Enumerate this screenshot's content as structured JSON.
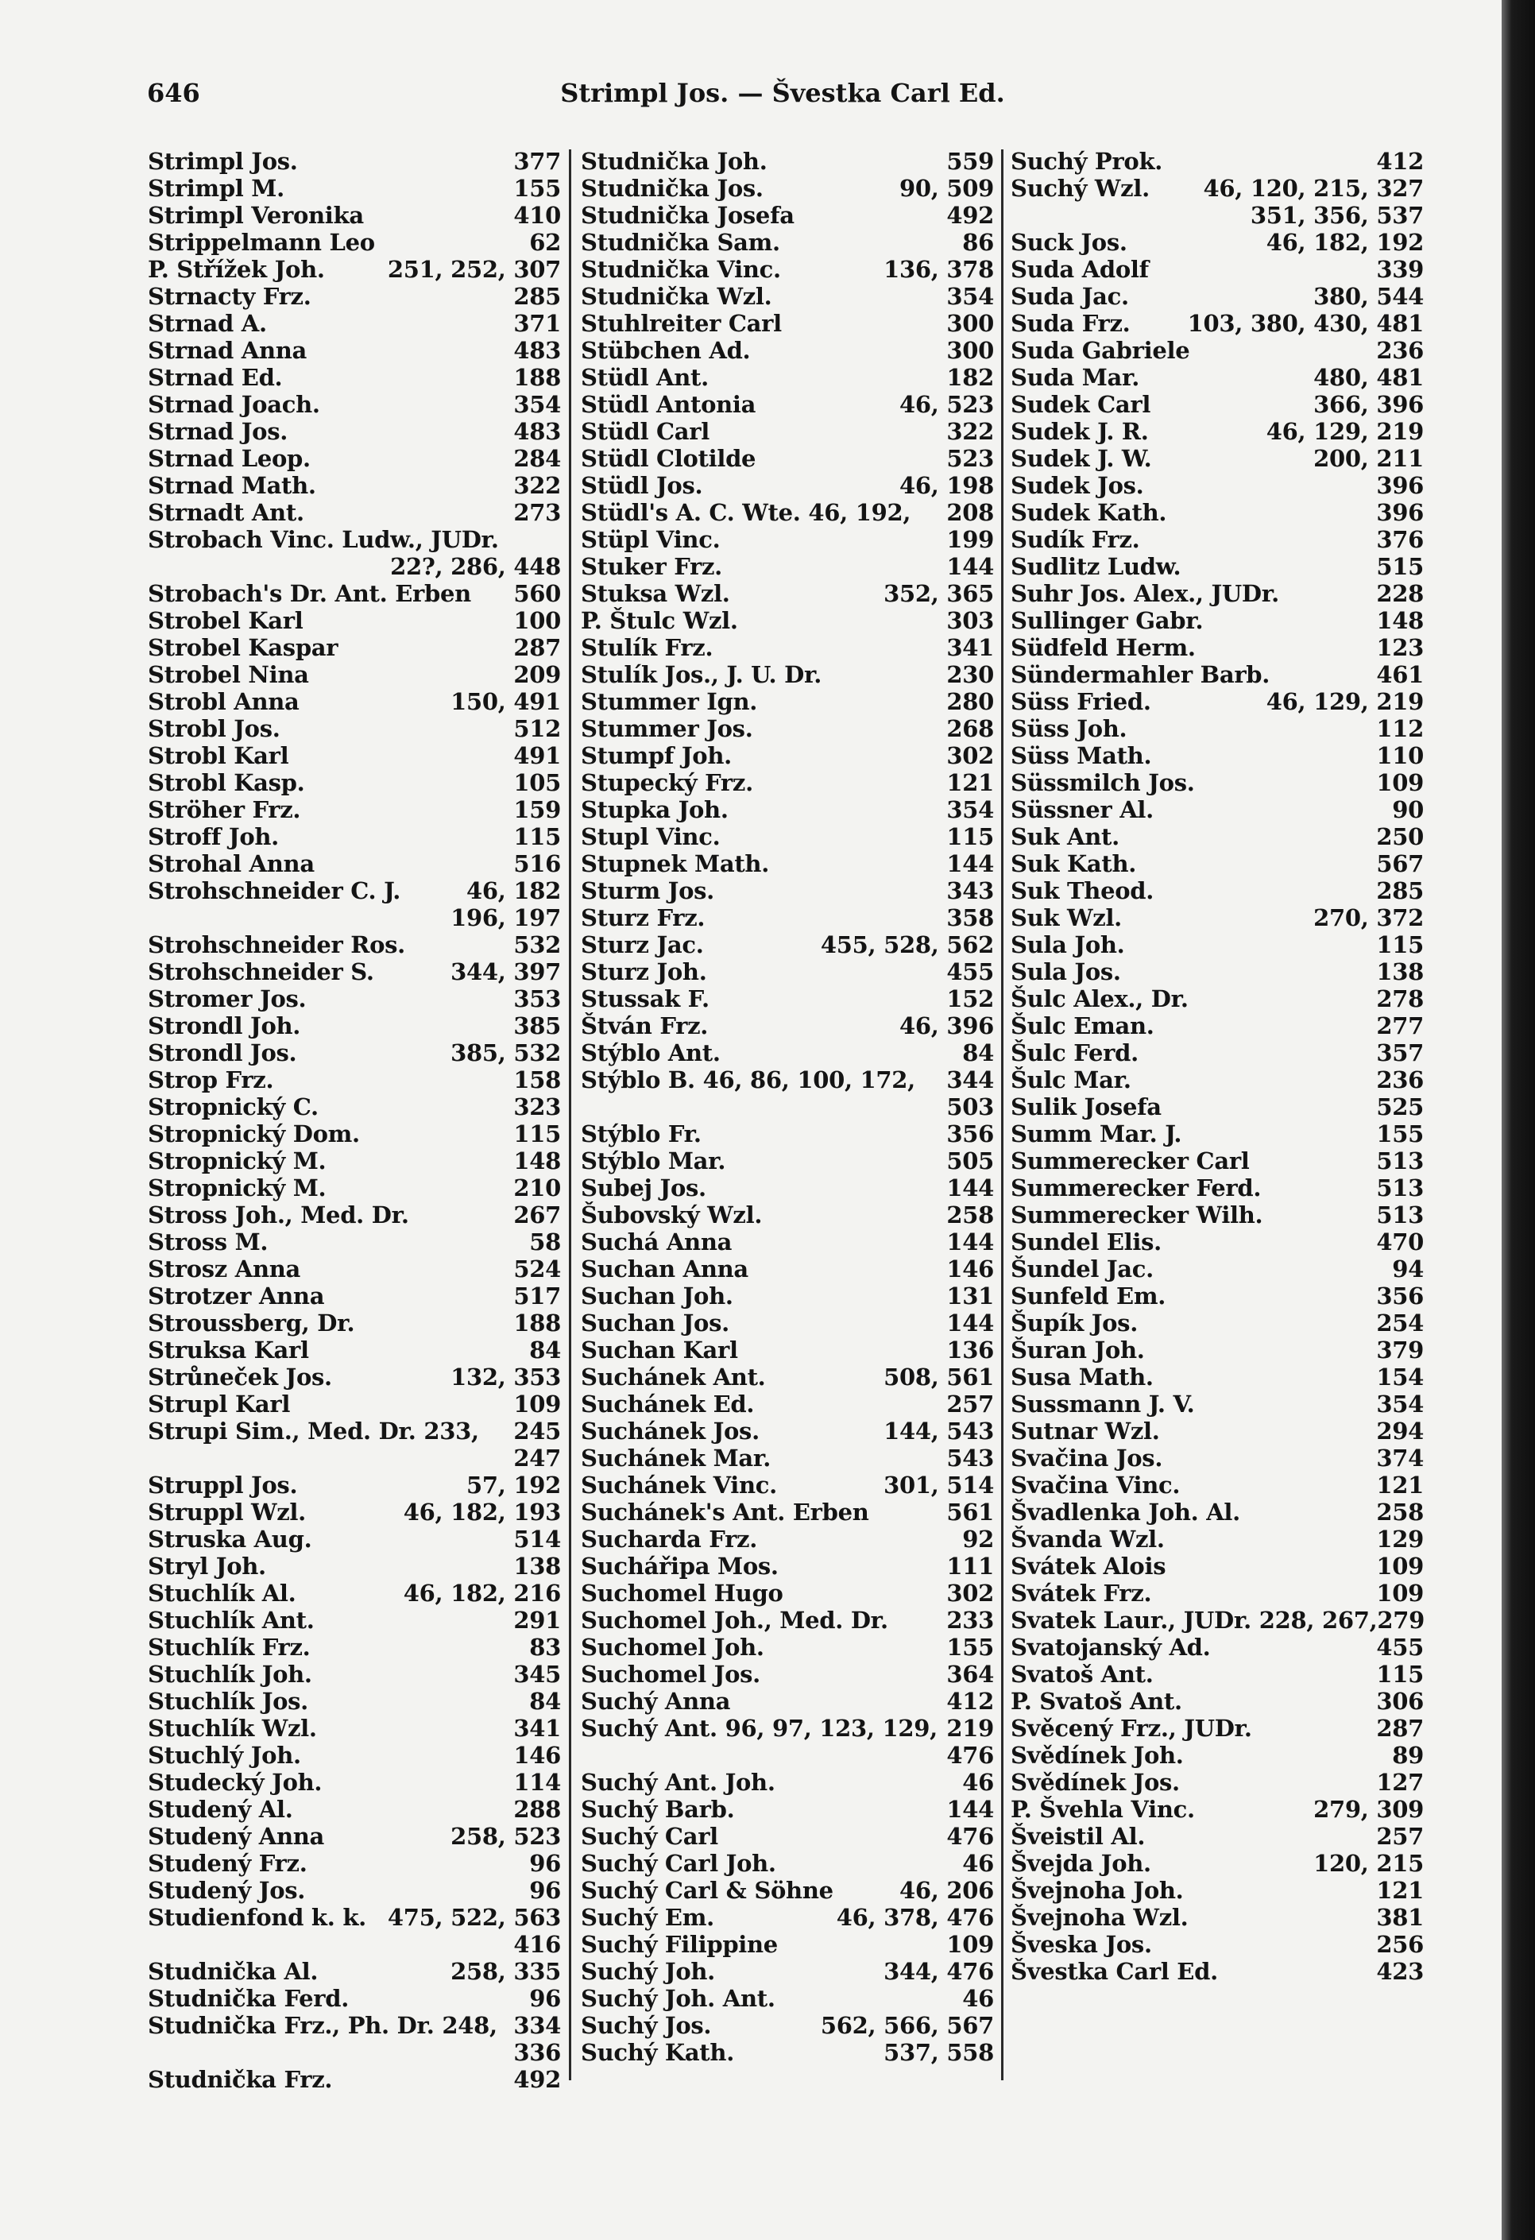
{
  "header": {
    "page_number": "646",
    "title": "Strimpl Jos. — Švestka Carl Ed."
  },
  "columns": [
    [
      [
        "Strimpl Jos.",
        "377"
      ],
      [
        "Strimpl M.",
        "155"
      ],
      [
        "Strimpl Veronika",
        "410"
      ],
      [
        "Strippelmann Leo",
        "62"
      ],
      [
        "P. Střížek Joh.",
        "251, 252, 307"
      ],
      [
        "Strnacty Frz.",
        "285"
      ],
      [
        "Strnad A.",
        "371"
      ],
      [
        "Strnad Anna",
        "483"
      ],
      [
        "Strnad Ed.",
        "188"
      ],
      [
        "Strnad Joach.",
        "354"
      ],
      [
        "Strnad Jos.",
        "483"
      ],
      [
        "Strnad Leop.",
        "284"
      ],
      [
        "Strnad Math.",
        "322"
      ],
      [
        "Strnadt Ant.",
        "273"
      ],
      [
        "Strobach Vinc. Ludw., JUDr.",
        ""
      ],
      [
        "",
        "22?, 286, 448"
      ],
      [
        "Strobach's Dr. Ant. Erben",
        "560"
      ],
      [
        "Strobel Karl",
        "100"
      ],
      [
        "Strobel Kaspar",
        "287"
      ],
      [
        "Strobel Nina",
        "209"
      ],
      [
        "Strobl Anna",
        "150, 491"
      ],
      [
        "Strobl Jos.",
        "512"
      ],
      [
        "Strobl Karl",
        "491"
      ],
      [
        "Strobl Kasp.",
        "105"
      ],
      [
        "Ströher Frz.",
        "159"
      ],
      [
        "Stroff Joh.",
        "115"
      ],
      [
        "Strohal Anna",
        "516"
      ],
      [
        "Strohschneider C. J.",
        "46, 182"
      ],
      [
        "",
        "196, 197"
      ],
      [
        "Strohschneider Ros.",
        "532"
      ],
      [
        "Strohschneider S.",
        "344, 397"
      ],
      [
        "Stromer Jos.",
        "353"
      ],
      [
        "Strondl Joh.",
        "385"
      ],
      [
        "Strondl Jos.",
        "385, 532"
      ],
      [
        "Strop Frz.",
        "158"
      ],
      [
        "Stropnický C.",
        "323"
      ],
      [
        "Stropnický Dom.",
        "115"
      ],
      [
        "Stropnický M.",
        "148"
      ],
      [
        "Stropnický M.",
        "210"
      ],
      [
        "Stross Joh., Med. Dr.",
        "267"
      ],
      [
        "Stross M.",
        "58"
      ],
      [
        "Strosz Anna",
        "524"
      ],
      [
        "Strotzer Anna",
        "517"
      ],
      [
        "Stroussberg, Dr.",
        "188"
      ],
      [
        "Struksa Karl",
        "84"
      ],
      [
        "Strůneček Jos.",
        "132, 353"
      ],
      [
        "Strupl Karl",
        "109"
      ],
      [
        "Strupi Sim., Med. Dr. 233,",
        "245"
      ],
      [
        "",
        "247"
      ],
      [
        "Struppl Jos.",
        "57, 192"
      ],
      [
        "Struppl Wzl.",
        "46, 182, 193"
      ],
      [
        "Struska Aug.",
        "514"
      ],
      [
        "Stryl Joh.",
        "138"
      ],
      [
        "Stuchlík Al.",
        "46, 182, 216"
      ],
      [
        "Stuchlík Ant.",
        "291"
      ],
      [
        "Stuchlík Frz.",
        "83"
      ],
      [
        "Stuchlík Joh.",
        "345"
      ],
      [
        "Stuchlík Jos.",
        "84"
      ],
      [
        "Stuchlík Wzl.",
        "341"
      ],
      [
        "Stuchlý Joh.",
        "146"
      ],
      [
        "Studecký Joh.",
        "114"
      ],
      [
        "Studený Al.",
        "288"
      ],
      [
        "Studený Anna",
        "258, 523"
      ],
      [
        "Studený Frz.",
        "96"
      ],
      [
        "Studený Jos.",
        "96"
      ],
      [
        "Studienfond k. k.",
        "475, 522, 563"
      ],
      [
        "",
        "416"
      ],
      [
        "Studnička Al.",
        "258, 335"
      ],
      [
        "Studnička Ferd.",
        "96"
      ],
      [
        "Studnička Frz., Ph. Dr. 248,",
        "334"
      ],
      [
        "",
        "336"
      ],
      [
        "Studnička Frz.",
        "492"
      ]
    ],
    [
      [
        "Studnička Joh.",
        "559"
      ],
      [
        "Studnička Jos.",
        "90, 509"
      ],
      [
        "Studnička Josefa",
        "492"
      ],
      [
        "Studnička Sam.",
        "86"
      ],
      [
        "Studnička Vinc.",
        "136, 378"
      ],
      [
        "Studnička Wzl.",
        "354"
      ],
      [
        "Stuhlreiter Carl",
        "300"
      ],
      [
        "Stübchen Ad.",
        "300"
      ],
      [
        "Stüdl Ant.",
        "182"
      ],
      [
        "Stüdl Antonia",
        "46, 523"
      ],
      [
        "Stüdl Carl",
        "322"
      ],
      [
        "Stüdl Clotilde",
        "523"
      ],
      [
        "Stüdl Jos.",
        "46, 198"
      ],
      [
        "Stüdl's A. C. Wte. 46, 192,",
        "208"
      ],
      [
        "Stüpl Vinc.",
        "199"
      ],
      [
        "Stuker Frz.",
        "144"
      ],
      [
        "Stuksa Wzl.",
        "352, 365"
      ],
      [
        "P. Štulc Wzl.",
        "303"
      ],
      [
        "Stulík Frz.",
        "341"
      ],
      [
        "Stulík Jos., J. U. Dr.",
        "230"
      ],
      [
        "Stummer Ign.",
        "280"
      ],
      [
        "Stummer Jos.",
        "268"
      ],
      [
        "Stumpf Joh.",
        "302"
      ],
      [
        "Stupecký Frz.",
        "121"
      ],
      [
        "Stupka Joh.",
        "354"
      ],
      [
        "Stupl Vinc.",
        "115"
      ],
      [
        "Stupnek Math.",
        "144"
      ],
      [
        "Sturm Jos.",
        "343"
      ],
      [
        "Sturz Frz.",
        "358"
      ],
      [
        "Sturz Jac.",
        "455, 528, 562"
      ],
      [
        "Sturz Joh.",
        "455"
      ],
      [
        "Stussak F.",
        "152"
      ],
      [
        "Štván Frz.",
        "46, 396"
      ],
      [
        "Stýblo Ant.",
        "84"
      ],
      [
        "Stýblo B. 46, 86, 100, 172,",
        "344"
      ],
      [
        "",
        "503"
      ],
      [
        "Stýblo Fr.",
        "356"
      ],
      [
        "Stýblo Mar.",
        "505"
      ],
      [
        "Subej Jos.",
        "144"
      ],
      [
        "Šubovský Wzl.",
        "258"
      ],
      [
        "Suchá Anna",
        "144"
      ],
      [
        "Suchan Anna",
        "146"
      ],
      [
        "Suchan Joh.",
        "131"
      ],
      [
        "Suchan Jos.",
        "144"
      ],
      [
        "Suchan Karl",
        "136"
      ],
      [
        "Suchánek Ant.",
        "508, 561"
      ],
      [
        "Suchánek Ed.",
        "257"
      ],
      [
        "Suchánek Jos.",
        "144, 543"
      ],
      [
        "Suchánek Mar.",
        "543"
      ],
      [
        "Suchánek Vinc.",
        "301, 514"
      ],
      [
        "Suchánek's Ant. Erben",
        "561"
      ],
      [
        "Sucharda Frz.",
        "92"
      ],
      [
        "Suchářipa Mos.",
        "111"
      ],
      [
        "Suchomel Hugo",
        "302"
      ],
      [
        "Suchomel Joh., Med. Dr.",
        "233"
      ],
      [
        "Suchomel Joh.",
        "155"
      ],
      [
        "Suchomel Jos.",
        "364"
      ],
      [
        "Suchý Anna",
        "412"
      ],
      [
        "Suchý Ant. 96, 97, 123, 129,",
        "219"
      ],
      [
        "",
        "476"
      ],
      [
        "Suchý Ant. Joh.",
        "46"
      ],
      [
        "Suchý Barb.",
        "144"
      ],
      [
        "Suchý Carl",
        "476"
      ],
      [
        "Suchý Carl Joh.",
        "46"
      ],
      [
        "Suchý Carl & Söhne",
        "46, 206"
      ],
      [
        "Suchý Em.",
        "46, 378, 476"
      ],
      [
        "Suchý Filippine",
        "109"
      ],
      [
        "Suchý Joh.",
        "344, 476"
      ],
      [
        "Suchý Joh. Ant.",
        "46"
      ],
      [
        "Suchý Jos.",
        "562, 566, 567"
      ],
      [
        "Suchý Kath.",
        "537, 558"
      ]
    ],
    [
      [
        "Suchý Prok.",
        "412"
      ],
      [
        "Suchý Wzl.",
        "46, 120, 215, 327"
      ],
      [
        "",
        "351, 356, 537"
      ],
      [
        "Suck Jos.",
        "46, 182, 192"
      ],
      [
        "Suda Adolf",
        "339"
      ],
      [
        "Suda Jac.",
        "380, 544"
      ],
      [
        "Suda Frz.",
        "103, 380, 430, 481"
      ],
      [
        "Suda Gabriele",
        "236"
      ],
      [
        "Suda Mar.",
        "480, 481"
      ],
      [
        "Sudek Carl",
        "366, 396"
      ],
      [
        "Sudek J. R.",
        "46, 129, 219"
      ],
      [
        "Sudek J. W.",
        "200, 211"
      ],
      [
        "Sudek Jos.",
        "396"
      ],
      [
        "Sudek Kath.",
        "396"
      ],
      [
        "Sudík Frz.",
        "376"
      ],
      [
        "Sudlitz Ludw.",
        "515"
      ],
      [
        "Suhr Jos. Alex., JUDr.",
        "228"
      ],
      [
        "Sullinger Gabr.",
        "148"
      ],
      [
        "Südfeld Herm.",
        "123"
      ],
      [
        "Sündermahler Barb.",
        "461"
      ],
      [
        "Süss Fried.",
        "46, 129, 219"
      ],
      [
        "Süss Joh.",
        "112"
      ],
      [
        "Süss Math.",
        "110"
      ],
      [
        "Süssmilch Jos.",
        "109"
      ],
      [
        "Süssner Al.",
        "90"
      ],
      [
        "Suk Ant.",
        "250"
      ],
      [
        "Suk Kath.",
        "567"
      ],
      [
        "Suk Theod.",
        "285"
      ],
      [
        "Suk Wzl.",
        "270, 372"
      ],
      [
        "Sula Joh.",
        "115"
      ],
      [
        "Sula Jos.",
        "138"
      ],
      [
        "Šulc Alex., Dr.",
        "278"
      ],
      [
        "Šulc Eman.",
        "277"
      ],
      [
        "Šulc Ferd.",
        "357"
      ],
      [
        "Šulc Mar.",
        "236"
      ],
      [
        "Sulik Josefa",
        "525"
      ],
      [
        "Summ Mar. J.",
        "155"
      ],
      [
        "Summerecker Carl",
        "513"
      ],
      [
        "Summerecker Ferd.",
        "513"
      ],
      [
        "Summerecker Wilh.",
        "513"
      ],
      [
        "Sundel Elis.",
        "470"
      ],
      [
        "Šundel Jac.",
        "94"
      ],
      [
        "Sunfeld Em.",
        "356"
      ],
      [
        "Šupík Jos.",
        "254"
      ],
      [
        "Šuran Joh.",
        "379"
      ],
      [
        "Susa Math.",
        "154"
      ],
      [
        "Sussmann J. V.",
        "354"
      ],
      [
        "Sutnar Wzl.",
        "294"
      ],
      [
        "Svačina Jos.",
        "374"
      ],
      [
        "Svačina Vinc.",
        "121"
      ],
      [
        "Švadlenka Joh. Al.",
        "258"
      ],
      [
        "Švanda Wzl.",
        "129"
      ],
      [
        "Svátek Alois",
        "109"
      ],
      [
        "Svátek Frz.",
        "109"
      ],
      [
        "Svatek Laur., JUDr. 228, 267,",
        "279"
      ],
      [
        "Svatojanský Ad.",
        "455"
      ],
      [
        "Svatoš Ant.",
        "115"
      ],
      [
        "P. Svatoš Ant.",
        "306"
      ],
      [
        "Svěcený Frz., JUDr.",
        "287"
      ],
      [
        "Svědínek Joh.",
        "89"
      ],
      [
        "Svědínek Jos.",
        "127"
      ],
      [
        "P. Švehla Vinc.",
        "279, 309"
      ],
      [
        "Šveistil Al.",
        "257"
      ],
      [
        "Švejda Joh.",
        "120, 215"
      ],
      [
        "Švejnoha Joh.",
        "121"
      ],
      [
        "Švejnoha Wzl.",
        "381"
      ],
      [
        "Šveska Jos.",
        "256"
      ],
      [
        "Švestka Carl Ed.",
        "423"
      ]
    ]
  ]
}
